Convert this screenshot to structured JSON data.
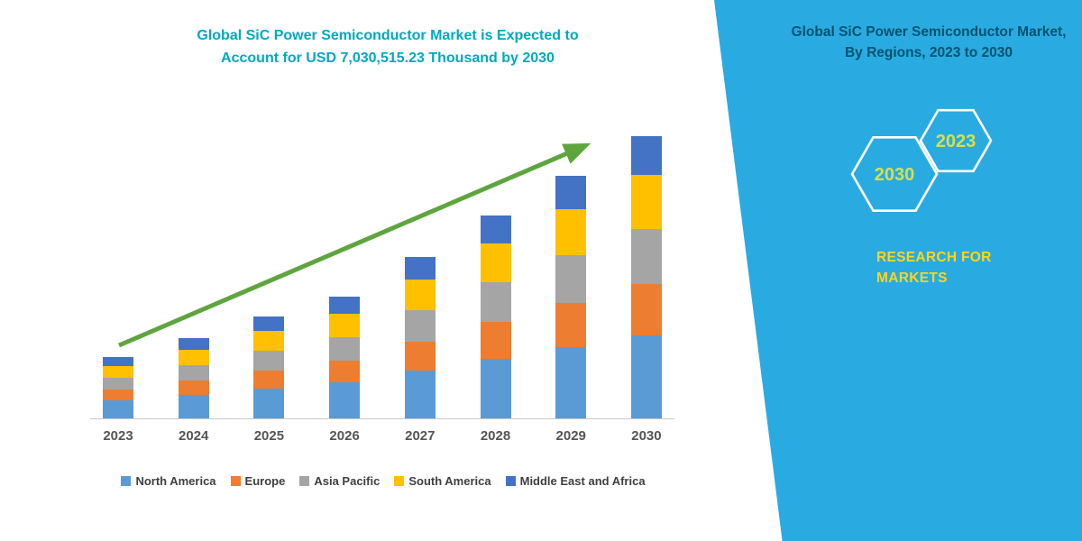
{
  "left_panel": {
    "title_line1": "Global SiC Power Semiconductor Market is Expected to",
    "title_line2": "Account for USD 7,030,515.23 Thousand by 2030",
    "title_color": "#00A9BE",
    "arrow_color": "#5FA53F"
  },
  "right_panel": {
    "bg_color": "#29ABE2",
    "title": "Global SiC Power Semiconductor Market, By Regions, 2023 to 2030",
    "title_color": "#00546E",
    "hexagons": [
      {
        "label": "2030"
      },
      {
        "label": "2023"
      }
    ],
    "hexagon_label_color": "#D6E04B",
    "brand_line1": "RESEARCH FOR",
    "brand_line2": "MARKETS",
    "brand_color": "#FFD51C"
  },
  "chart_data": {
    "type": "bar",
    "stacked": true,
    "title": "Global SiC Power Semiconductor Market is Expected to Account for USD 7,030,515.23 Thousand by 2030",
    "categories": [
      "2023",
      "2024",
      "2025",
      "2026",
      "2027",
      "2028",
      "2029",
      "2030"
    ],
    "series": [
      {
        "name": "North America",
        "color": "#5B9BD5",
        "values": [
          20,
          26,
          33,
          40,
          53,
          66,
          79,
          92
        ]
      },
      {
        "name": "Europe",
        "color": "#ED7D31",
        "values": [
          12,
          16,
          20,
          24,
          32,
          41,
          49,
          57
        ]
      },
      {
        "name": "Asia Pacific",
        "color": "#A5A5A5",
        "values": [
          13,
          17,
          22,
          26,
          35,
          44,
          53,
          61
        ]
      },
      {
        "name": "South America",
        "color": "#FFC000",
        "values": [
          13,
          17,
          22,
          26,
          34,
          43,
          51,
          60
        ]
      },
      {
        "name": "Middle East and Africa",
        "color": "#4472C4",
        "values": [
          10,
          13,
          16,
          19,
          25,
          31,
          37,
          43
        ]
      }
    ],
    "xlabel": "",
    "ylabel": "",
    "units": "relative (y-axis unlabeled in figure)",
    "ylim": [
      0,
      320
    ],
    "grid": false,
    "legend_position": "bottom",
    "annotations": [
      "upward green trend arrow from 2023 toward 2030"
    ]
  }
}
